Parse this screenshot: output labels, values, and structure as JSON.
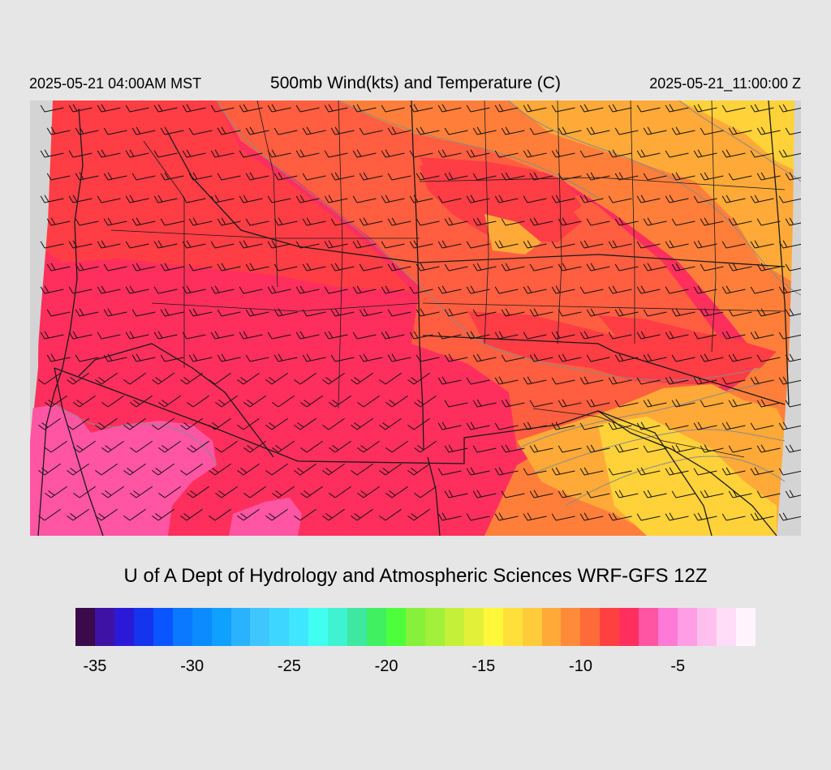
{
  "header": {
    "valid_time": "2025-05-21 04:00AM MST",
    "title": "500mb Wind(kts) and Temperature (C)",
    "init_time": "2025-05-21_11:00:00 Z"
  },
  "credit": "U of A Dept of Hydrology and Atmospheric Sciences WRF-GFS 12Z",
  "map": {
    "region": "Southwestern United States and northern Mexico",
    "field": "500mb temperature (C) shaded with wind barbs (kts)",
    "colors": {
      "no_data": "#d4d4d4",
      "border": "#1a1a1a",
      "contour": "#8a8a8a",
      "barb": "#111111"
    },
    "temperature_zones": [
      {
        "name": "temp-zone-minus4",
        "value": -4,
        "color": "#ff55a3"
      },
      {
        "name": "temp-zone-minus5",
        "value": -5,
        "color": "#ff2f5d"
      },
      {
        "name": "temp-zone-minus6",
        "value": -6,
        "color": "#ff3d45"
      },
      {
        "name": "temp-zone-minus7",
        "value": -7,
        "color": "#ff5e40"
      },
      {
        "name": "temp-zone-minus8",
        "value": -8,
        "color": "#ff7f3a"
      },
      {
        "name": "temp-zone-minus9",
        "value": -9,
        "color": "#ffaa38"
      },
      {
        "name": "temp-zone-minus10",
        "value": -10,
        "color": "#ffd23a"
      }
    ]
  },
  "colorbar": {
    "colors": [
      "#3a0a4a",
      "#3e12a4",
      "#2a1ad8",
      "#1434ee",
      "#0a55ff",
      "#0a78ff",
      "#0a8cff",
      "#10a0ff",
      "#2ab2ff",
      "#3fc6ff",
      "#3dd6ff",
      "#3fe6ff",
      "#40fff2",
      "#3ef2d2",
      "#3ee8a0",
      "#40f060",
      "#4cff3a",
      "#86f03a",
      "#a2f03a",
      "#c4f03a",
      "#e2f03a",
      "#fff83a",
      "#ffe03a",
      "#ffcb3a",
      "#ffaa38",
      "#ff8a3a",
      "#ff6a3a",
      "#ff4040",
      "#ff2f5d",
      "#ff55a3",
      "#ff7ad6",
      "#ff9ee6",
      "#ffc0f0",
      "#ffdcf8",
      "#fff4fd"
    ],
    "ticks": [
      {
        "label": "-35",
        "value": -35
      },
      {
        "label": "-30",
        "value": -30
      },
      {
        "label": "-25",
        "value": -25
      },
      {
        "label": "-20",
        "value": -20
      },
      {
        "label": "-15",
        "value": -15
      },
      {
        "label": "-10",
        "value": -10
      },
      {
        "label": "-5",
        "value": -5
      }
    ],
    "range": [
      -36,
      -1
    ]
  }
}
